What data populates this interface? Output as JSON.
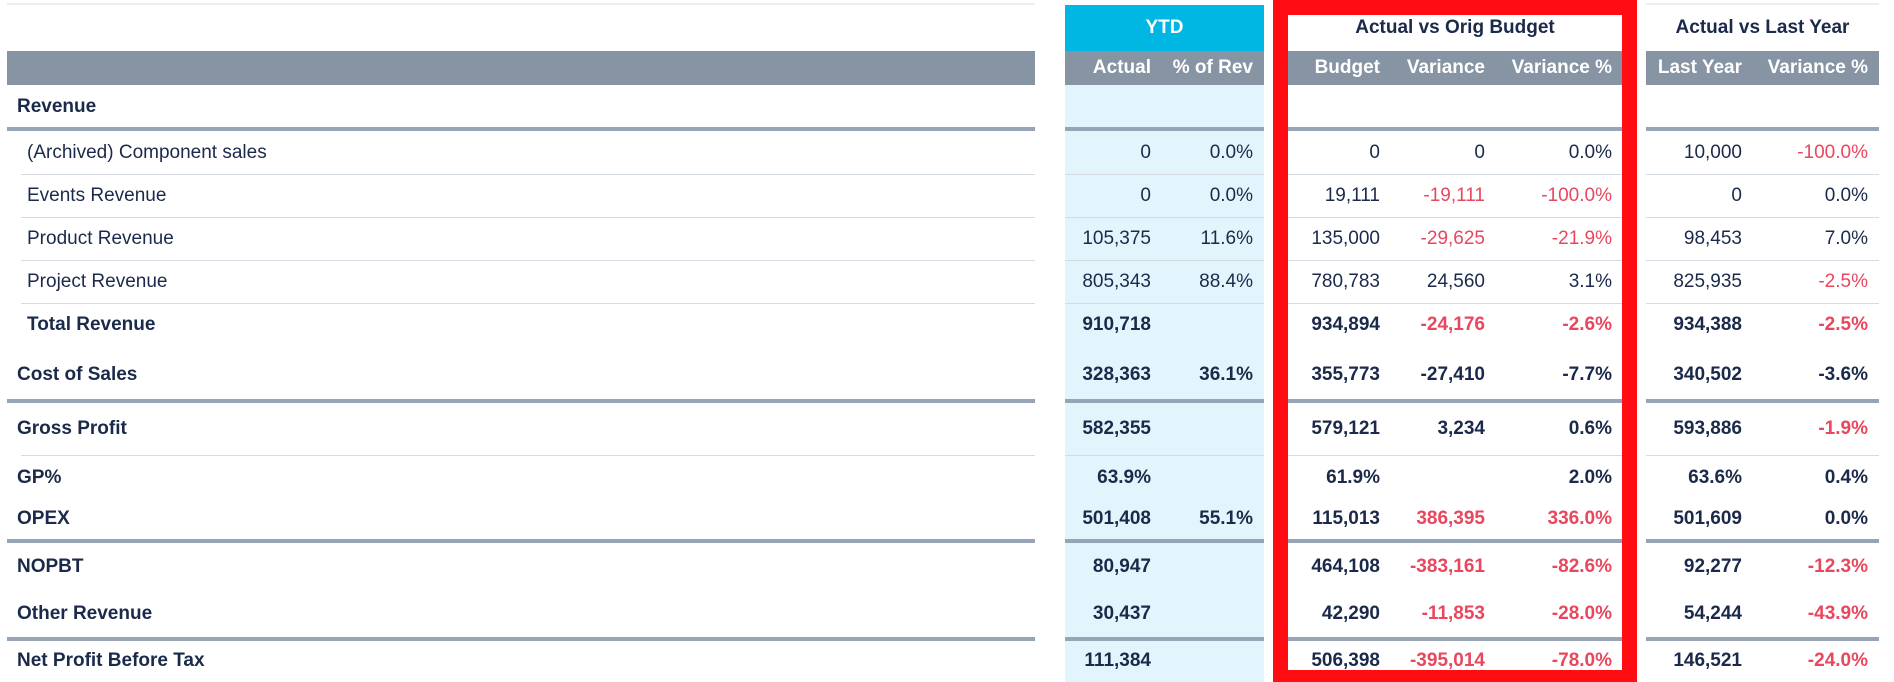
{
  "colors": {
    "header_gray": "#8794a3",
    "ytd_accent": "#00b7e3",
    "ytd_column_bg": "#e3f5fc",
    "text_navy": "#1b2a4a",
    "negative_red": "#e8475e",
    "highlight_box": "#ff0d12",
    "divider": "#97a4b6"
  },
  "header": {
    "groups": {
      "ytd": "YTD",
      "budget": "Actual vs Orig Budget",
      "last_year": "Actual vs Last Year"
    },
    "columns": {
      "actual": "Actual",
      "pct_rev": "% of Rev",
      "budget": "Budget",
      "variance": "Variance",
      "variance_pct": "Variance %",
      "last_year": "Last Year",
      "ly_variance_pct": "Variance %"
    }
  },
  "rows": [
    {
      "label": "Revenue",
      "type": "section",
      "actual": "",
      "pct_rev": "",
      "budget": "",
      "variance": "",
      "variance_pct": "",
      "last_year": "",
      "ly_variance_pct": ""
    },
    {
      "label": "(Archived) Component sales",
      "type": "sub",
      "actual": "0",
      "pct_rev": "0.0%",
      "budget": "0",
      "variance": "0",
      "variance_pct": "0.0%",
      "last_year": "10,000",
      "ly_variance_pct": "-100.0%"
    },
    {
      "label": "Events Revenue",
      "type": "sub",
      "actual": "0",
      "pct_rev": "0.0%",
      "budget": "19,111",
      "variance": "-19,111",
      "variance_pct": "-100.0%",
      "last_year": "0",
      "ly_variance_pct": "0.0%"
    },
    {
      "label": "Product Revenue",
      "type": "sub",
      "actual": "105,375",
      "pct_rev": "11.6%",
      "budget": "135,000",
      "variance": "-29,625",
      "variance_pct": "-21.9%",
      "last_year": "98,453",
      "ly_variance_pct": "7.0%"
    },
    {
      "label": "Project Revenue",
      "type": "sub",
      "actual": "805,343",
      "pct_rev": "88.4%",
      "budget": "780,783",
      "variance": "24,560",
      "variance_pct": "3.1%",
      "last_year": "825,935",
      "ly_variance_pct": "-2.5%"
    },
    {
      "label": "Total Revenue",
      "type": "subtotal",
      "actual": "910,718",
      "pct_rev": "",
      "budget": "934,894",
      "variance": "-24,176",
      "variance_pct": "-2.6%",
      "last_year": "934,388",
      "ly_variance_pct": "-2.5%"
    },
    {
      "label": "Cost of Sales",
      "type": "total",
      "actual": "328,363",
      "pct_rev": "36.1%",
      "budget": "355,773",
      "variance": "-27,410",
      "variance_pct": "-7.7%",
      "last_year": "340,502",
      "ly_variance_pct": "-3.6%"
    },
    {
      "label": "Gross Profit",
      "type": "total",
      "actual": "582,355",
      "pct_rev": "",
      "budget": "579,121",
      "variance": "3,234",
      "variance_pct": "0.6%",
      "last_year": "593,886",
      "ly_variance_pct": "-1.9%"
    },
    {
      "label": "GP%",
      "type": "total",
      "actual": "63.9%",
      "pct_rev": "",
      "budget": "61.9%",
      "variance": "",
      "variance_pct": "2.0%",
      "last_year": "63.6%",
      "ly_variance_pct": "0.4%"
    },
    {
      "label": "OPEX",
      "type": "total",
      "actual": "501,408",
      "pct_rev": "55.1%",
      "budget": "115,013",
      "variance": "386,395",
      "variance_pct": "336.0%",
      "last_year": "501,609",
      "ly_variance_pct": "0.0%"
    },
    {
      "label": "NOPBT",
      "type": "total",
      "actual": "80,947",
      "pct_rev": "",
      "budget": "464,108",
      "variance": "-383,161",
      "variance_pct": "-82.6%",
      "last_year": "92,277",
      "ly_variance_pct": "-12.3%"
    },
    {
      "label": "Other Revenue",
      "type": "total",
      "actual": "30,437",
      "pct_rev": "",
      "budget": "42,290",
      "variance": "-11,853",
      "variance_pct": "-28.0%",
      "last_year": "54,244",
      "ly_variance_pct": "-43.9%"
    },
    {
      "label": "Net Profit Before Tax",
      "type": "total",
      "actual": "111,384",
      "pct_rev": "",
      "budget": "506,398",
      "variance": "-395,014",
      "variance_pct": "-78.0%",
      "last_year": "146,521",
      "ly_variance_pct": "-24.0%"
    }
  ]
}
